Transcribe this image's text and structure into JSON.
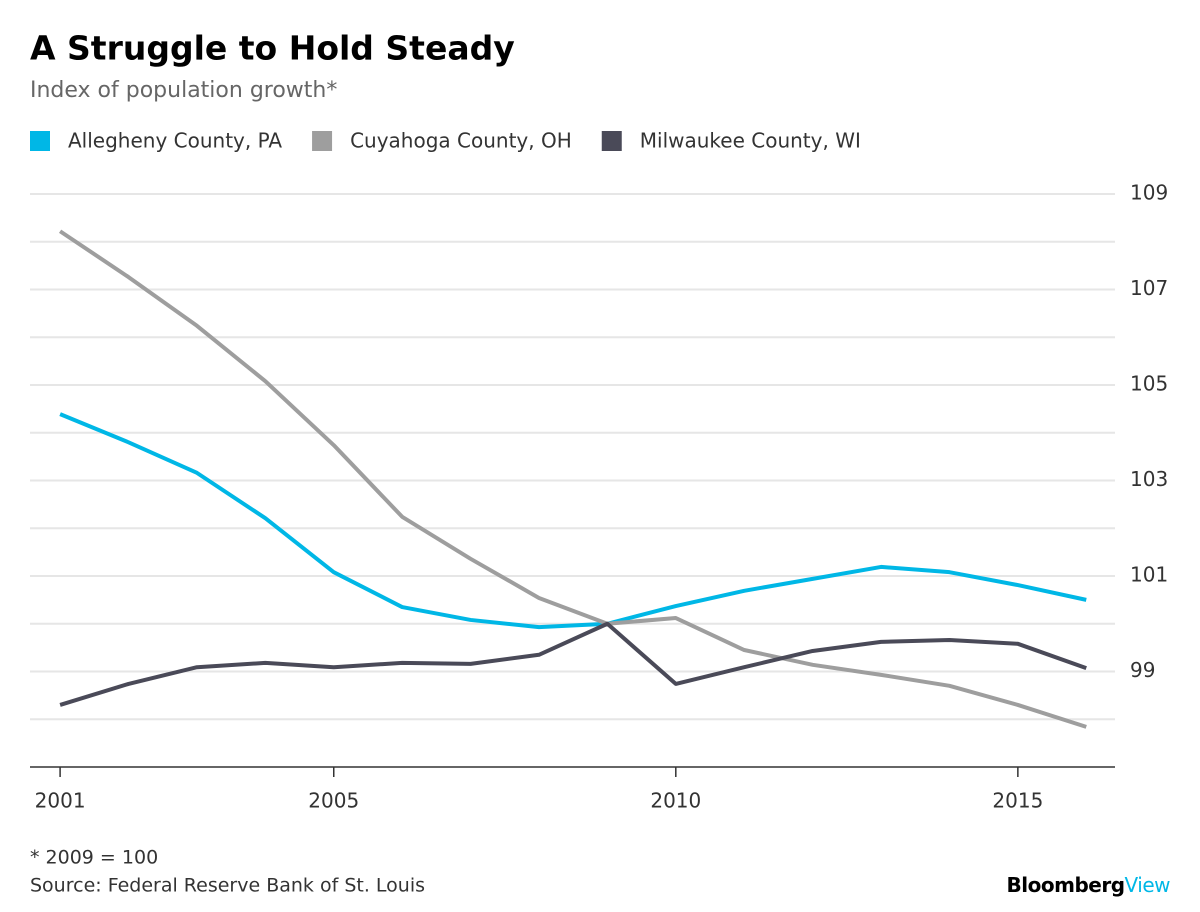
{
  "chart_data": {
    "type": "line",
    "title": "A Struggle to Hold Steady",
    "subtitle": "Index of population growth*",
    "x": [
      2001,
      2002,
      2003,
      2004,
      2005,
      2006,
      2007,
      2008,
      2009,
      2010,
      2011,
      2012,
      2013,
      2014,
      2015,
      2016
    ],
    "series": [
      {
        "name": "Allegheny County, PA",
        "color": "#00b7e6",
        "values": [
          104.39,
          103.8,
          103.16,
          102.21,
          101.08,
          100.35,
          100.08,
          99.93,
          100,
          100.37,
          100.69,
          100.94,
          101.19,
          101.08,
          100.81,
          100.5
        ]
      },
      {
        "name": "Cuyahoga County, OH",
        "color": "#9e9e9e",
        "values": [
          108.22,
          107.26,
          106.24,
          105.08,
          103.74,
          102.24,
          101.36,
          100.54,
          100,
          100.12,
          99.45,
          99.14,
          98.93,
          98.7,
          98.3,
          97.84
        ]
      },
      {
        "name": "Milwaukee County, WI",
        "color": "#4a4a58",
        "values": [
          98.3,
          98.74,
          99.09,
          99.18,
          99.09,
          99.18,
          99.16,
          99.35,
          100,
          98.74,
          99.09,
          99.43,
          99.62,
          99.66,
          99.58,
          99.07
        ]
      }
    ],
    "xlim": [
      2000.56,
      2016.42
    ],
    "xticks": [
      2001,
      2005,
      2010,
      2015
    ],
    "ylim": [
      97,
      109
    ],
    "yticks": [
      99,
      101,
      103,
      105,
      107,
      109
    ],
    "y_minor_ticks": [
      98,
      100,
      102,
      104,
      106,
      108
    ],
    "grid": true,
    "footnote": "* 2009 = 100",
    "source": "Source: Federal Reserve Bank of St. Louis",
    "brand": "Bloomberg",
    "brand_suffix": "View"
  }
}
